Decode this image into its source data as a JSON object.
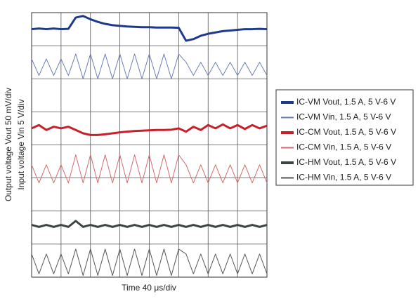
{
  "chart_data": {
    "type": "line",
    "y_label_1": "Output voltage Vout 50 mV/div",
    "y_label_2": "Input voltage Vin 5 V/div",
    "x_label": "Time 40 μs/div",
    "xlim": [
      0,
      8
    ],
    "ylim": [
      0,
      8
    ],
    "grid": true,
    "legend": "right",
    "x": [
      0,
      0.25,
      0.5,
      0.75,
      1,
      1.25,
      1.5,
      1.75,
      2,
      2.25,
      2.5,
      2.75,
      3,
      3.25,
      3.5,
      3.75,
      4,
      4.25,
      4.5,
      4.75,
      5,
      5.25,
      5.5,
      5.75,
      6,
      6.25,
      6.5,
      6.75,
      7,
      7.25,
      7.5,
      7.75,
      8
    ],
    "series": [
      {
        "name": "IC-VM Vout, 1.5 A, 5 V-6 V",
        "color": "#1f3a8a",
        "width": 3,
        "values": [
          7.5,
          7.52,
          7.5,
          7.52,
          7.5,
          7.51,
          7.85,
          7.9,
          7.8,
          7.72,
          7.66,
          7.62,
          7.6,
          7.58,
          7.57,
          7.56,
          7.56,
          7.55,
          7.55,
          7.55,
          7.54,
          7.15,
          7.2,
          7.3,
          7.36,
          7.4,
          7.44,
          7.46,
          7.48,
          7.5,
          7.5,
          7.51,
          7.5
        ]
      },
      {
        "name": "IC-VM Vin, 1.5 A, 5 V-6 V",
        "color": "#6b7db5",
        "width": 1,
        "values": [
          6.6,
          6.1,
          6.6,
          6.1,
          6.6,
          6.1,
          6.75,
          6.0,
          6.75,
          6.0,
          6.75,
          6.0,
          6.75,
          6.0,
          6.75,
          6.0,
          6.75,
          6.0,
          6.75,
          6.0,
          6.75,
          6.5,
          6.1,
          6.5,
          6.1,
          6.5,
          6.1,
          6.5,
          6.1,
          6.5,
          6.1,
          6.5,
          6.1
        ]
      },
      {
        "name": "IC-CM Vout, 1.5 A, 5 V-6 V",
        "color": "#c8202a",
        "width": 3,
        "values": [
          4.5,
          4.6,
          4.45,
          4.55,
          4.5,
          4.55,
          4.45,
          4.35,
          4.3,
          4.3,
          4.32,
          4.35,
          4.38,
          4.4,
          4.42,
          4.43,
          4.44,
          4.45,
          4.45,
          4.46,
          4.5,
          4.4,
          4.55,
          4.45,
          4.6,
          4.5,
          4.62,
          4.5,
          4.6,
          4.48,
          4.6,
          4.5,
          4.58
        ]
      },
      {
        "name": "IC-CM Vin, 1.5 A, 5 V-6 V",
        "color": "#d46a6a",
        "width": 1,
        "values": [
          3.4,
          2.85,
          3.4,
          2.85,
          3.4,
          2.85,
          3.7,
          2.85,
          3.7,
          2.85,
          3.7,
          2.85,
          3.7,
          2.85,
          3.7,
          2.85,
          3.7,
          2.85,
          3.7,
          2.85,
          3.7,
          3.4,
          2.85,
          3.4,
          2.85,
          3.4,
          2.85,
          3.4,
          2.85,
          3.4,
          2.85,
          3.4,
          2.85
        ]
      },
      {
        "name": "IC-HM Vout, 1.5 A, 5 V-6 V",
        "color": "#3c4540",
        "width": 3,
        "values": [
          1.58,
          1.52,
          1.58,
          1.52,
          1.58,
          1.52,
          1.7,
          1.52,
          1.58,
          1.52,
          1.58,
          1.52,
          1.58,
          1.52,
          1.58,
          1.52,
          1.58,
          1.52,
          1.58,
          1.52,
          1.58,
          1.52,
          1.58,
          1.52,
          1.58,
          1.52,
          1.58,
          1.52,
          1.58,
          1.52,
          1.58,
          1.52,
          1.58
        ]
      },
      {
        "name": "IC-HM Vin, 1.5 A, 5 V-6 V",
        "color": "#555555",
        "width": 1,
        "values": [
          0.7,
          0.1,
          0.7,
          0.1,
          0.7,
          0.1,
          0.85,
          0.05,
          0.85,
          0.05,
          0.85,
          0.05,
          0.85,
          0.05,
          0.85,
          0.05,
          0.85,
          0.05,
          0.85,
          0.05,
          0.85,
          0.7,
          0.1,
          0.7,
          0.1,
          0.7,
          0.1,
          0.7,
          0.1,
          0.7,
          0.1,
          0.7,
          0.1
        ]
      }
    ]
  }
}
